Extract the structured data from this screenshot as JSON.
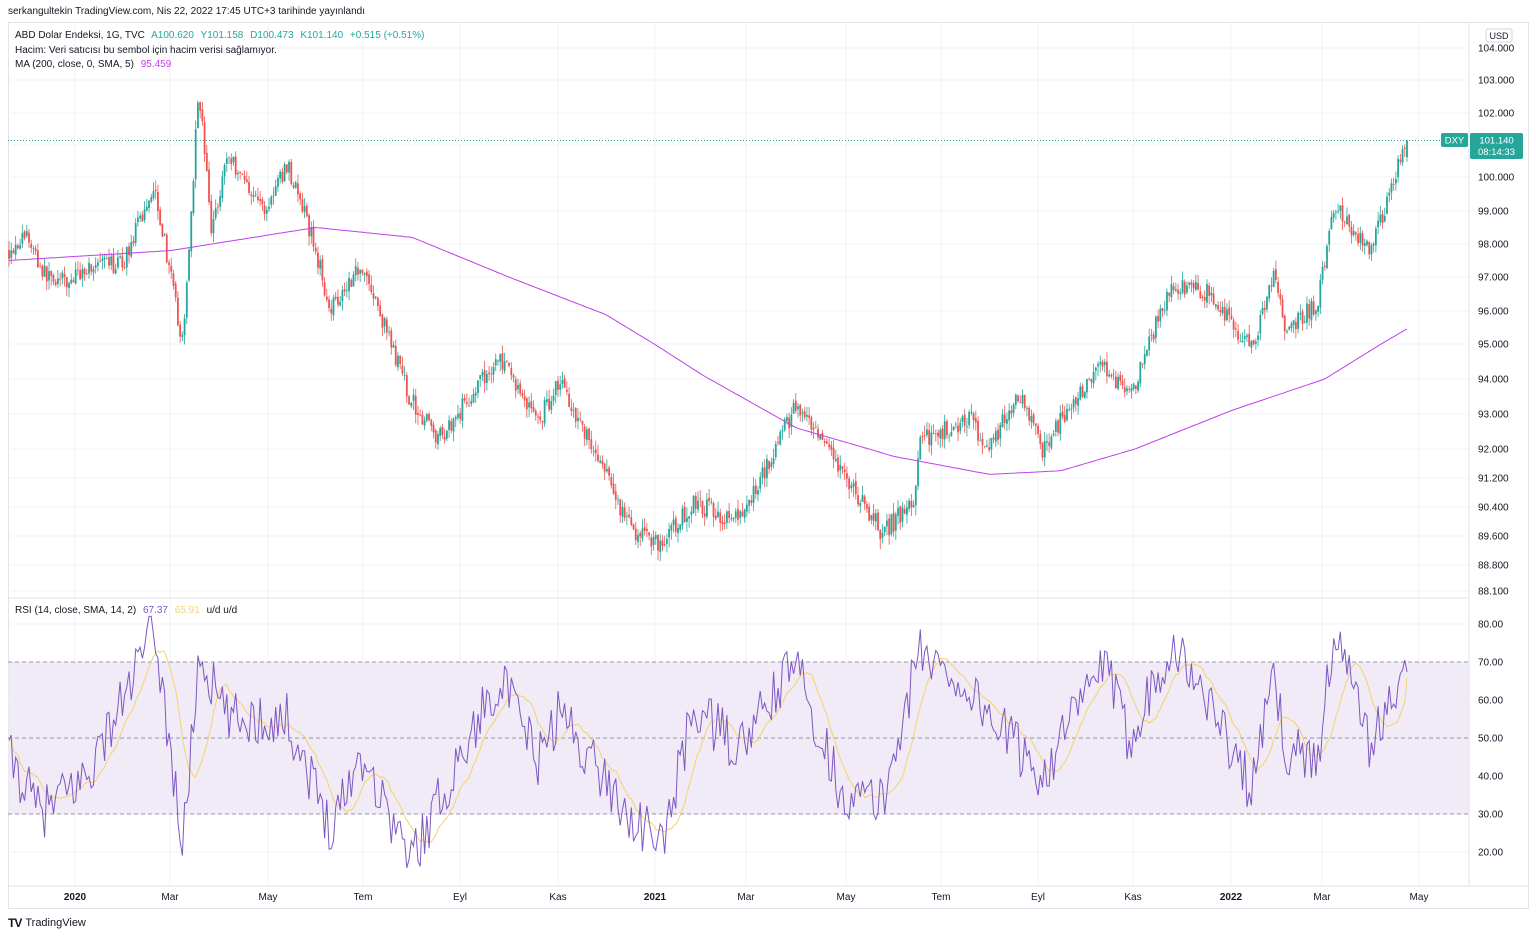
{
  "header": {
    "published": "serkangultekin TradingView.com, Nis 22, 2022 17:45 UTC+3 tarihinde yayınlandı"
  },
  "legend": {
    "symbol": "ABD Dolar Endeksi, 1G, TVC",
    "open": "A100.620",
    "high": "Y101.158",
    "low": "D100.473",
    "close": "K101.140",
    "change": "+0.515 (+0.51%)",
    "volume_note": "Hacim: Veri satıcısı bu sembol için hacim verisi sağlamıyor.",
    "ma_label": "MA (200, close, 0, SMA, 5)",
    "ma_value": "95.459",
    "rsi_label": "RSI (14, close, SMA, 14, 2)",
    "rsi_value": "67.37",
    "rsi_ma_value": "65.91",
    "rsi_extra": "u/d  u/d"
  },
  "price_axis": {
    "currency": "USD",
    "ticks": [
      "104.000",
      "103.000",
      "102.000",
      "101.000",
      "100.000",
      "99.000",
      "98.000",
      "97.000",
      "96.000",
      "95.000",
      "94.000",
      "93.000",
      "92.000",
      "91.200",
      "90.400",
      "89.600",
      "88.800",
      "88.100"
    ],
    "badge_symbol": "DXY",
    "badge_price": "101.140",
    "badge_countdown": "08:14:33"
  },
  "rsi_axis": {
    "ticks": [
      "80.00",
      "70.00",
      "60.00",
      "50.00",
      "40.00",
      "30.00",
      "20.00"
    ]
  },
  "time_axis": {
    "labels": [
      "2020",
      "Mar",
      "May",
      "Tem",
      "Eyl",
      "Kas",
      "2021",
      "Mar",
      "May",
      "Tem",
      "Eyl",
      "Kas",
      "2022",
      "Mar",
      "May"
    ]
  },
  "colors": {
    "up": "#26a69a",
    "down": "#ef5350",
    "ma": "#c040e8",
    "rsi": "#7e57c2",
    "rsi_ma": "#f5d26a",
    "band": "#ede7f6",
    "badge": "#26a69a"
  },
  "footer": {
    "brand": "TradingView"
  },
  "chart_data": {
    "type": "candlestick",
    "symbol": "DXY",
    "timeframe": "1D",
    "anchor_points": [
      {
        "date": "2019-11-20",
        "close": 97.8
      },
      {
        "date": "2019-12-01",
        "close": 98.3
      },
      {
        "date": "2019-12-12",
        "close": 97.1
      },
      {
        "date": "2019-12-27",
        "close": 96.8
      },
      {
        "date": "2020-01-08",
        "close": 97.3
      },
      {
        "date": "2020-01-31",
        "close": 97.4
      },
      {
        "date": "2020-02-20",
        "close": 99.8
      },
      {
        "date": "2020-03-09",
        "close": 94.9
      },
      {
        "date": "2020-03-19",
        "close": 102.8
      },
      {
        "date": "2020-03-27",
        "close": 98.4
      },
      {
        "date": "2020-04-06",
        "close": 100.7
      },
      {
        "date": "2020-04-30",
        "close": 99.0
      },
      {
        "date": "2020-05-14",
        "close": 100.4
      },
      {
        "date": "2020-05-29",
        "close": 98.3
      },
      {
        "date": "2020-06-10",
        "close": 96.1
      },
      {
        "date": "2020-06-30",
        "close": 97.4
      },
      {
        "date": "2020-07-31",
        "close": 93.4
      },
      {
        "date": "2020-08-18",
        "close": 92.3
      },
      {
        "date": "2020-09-25",
        "close": 94.6
      },
      {
        "date": "2020-10-20",
        "close": 92.8
      },
      {
        "date": "2020-11-02",
        "close": 94.0
      },
      {
        "date": "2020-12-17",
        "close": 89.8
      },
      {
        "date": "2021-01-06",
        "close": 89.4
      },
      {
        "date": "2021-01-26",
        "close": 90.5
      },
      {
        "date": "2021-02-24",
        "close": 90.0
      },
      {
        "date": "2021-03-31",
        "close": 93.2
      },
      {
        "date": "2021-04-30",
        "close": 91.3
      },
      {
        "date": "2021-05-25",
        "close": 89.7
      },
      {
        "date": "2021-06-14",
        "close": 90.5
      },
      {
        "date": "2021-06-18",
        "close": 92.2
      },
      {
        "date": "2021-07-20",
        "close": 92.9
      },
      {
        "date": "2021-07-30",
        "close": 92.0
      },
      {
        "date": "2021-08-20",
        "close": 93.5
      },
      {
        "date": "2021-09-03",
        "close": 92.0
      },
      {
        "date": "2021-10-12",
        "close": 94.5
      },
      {
        "date": "2021-10-28",
        "close": 93.4
      },
      {
        "date": "2021-11-24",
        "close": 96.8
      },
      {
        "date": "2021-12-20",
        "close": 96.5
      },
      {
        "date": "2022-01-14",
        "close": 94.8
      },
      {
        "date": "2022-01-28",
        "close": 97.2
      },
      {
        "date": "2022-02-04",
        "close": 95.4
      },
      {
        "date": "2022-02-24",
        "close": 96.2
      },
      {
        "date": "2022-03-07",
        "close": 99.2
      },
      {
        "date": "2022-03-30",
        "close": 97.8
      },
      {
        "date": "2022-04-22",
        "close": 101.14
      }
    ],
    "last_bar": {
      "open": 100.62,
      "high": 101.158,
      "low": 100.473,
      "close": 101.14
    },
    "ma200": [
      {
        "date": "2019-11-20",
        "value": 97.5
      },
      {
        "date": "2020-03-01",
        "value": 97.8
      },
      {
        "date": "2020-06-01",
        "value": 98.5
      },
      {
        "date": "2020-08-01",
        "value": 98.2
      },
      {
        "date": "2020-10-01",
        "value": 97.0
      },
      {
        "date": "2020-12-01",
        "value": 95.9
      },
      {
        "date": "2021-02-01",
        "value": 94.1
      },
      {
        "date": "2021-04-01",
        "value": 92.6
      },
      {
        "date": "2021-06-01",
        "value": 91.8
      },
      {
        "date": "2021-08-01",
        "value": 91.3
      },
      {
        "date": "2021-09-15",
        "value": 91.4
      },
      {
        "date": "2021-11-01",
        "value": 92.0
      },
      {
        "date": "2022-01-01",
        "value": 93.1
      },
      {
        "date": "2022-03-01",
        "value": 94.0
      },
      {
        "date": "2022-04-22",
        "value": 95.459
      }
    ],
    "rsi": [
      {
        "date": "2019-11-20",
        "value": 45
      },
      {
        "date": "2019-12-10",
        "value": 30
      },
      {
        "date": "2020-01-08",
        "value": 40
      },
      {
        "date": "2020-01-31",
        "value": 60
      },
      {
        "date": "2020-02-20",
        "value": 79
      },
      {
        "date": "2020-03-09",
        "value": 21
      },
      {
        "date": "2020-03-19",
        "value": 72
      },
      {
        "date": "2020-04-06",
        "value": 55
      },
      {
        "date": "2020-05-14",
        "value": 55
      },
      {
        "date": "2020-06-10",
        "value": 27
      },
      {
        "date": "2020-06-30",
        "value": 46
      },
      {
        "date": "2020-07-31",
        "value": 18
      },
      {
        "date": "2020-09-25",
        "value": 66
      },
      {
        "date": "2020-10-20",
        "value": 44
      },
      {
        "date": "2020-11-02",
        "value": 57
      },
      {
        "date": "2020-12-17",
        "value": 29
      },
      {
        "date": "2021-01-06",
        "value": 22
      },
      {
        "date": "2021-01-26",
        "value": 58
      },
      {
        "date": "2021-02-24",
        "value": 47
      },
      {
        "date": "2021-03-31",
        "value": 70
      },
      {
        "date": "2021-04-30",
        "value": 35
      },
      {
        "date": "2021-05-25",
        "value": 33
      },
      {
        "date": "2021-06-18",
        "value": 73
      },
      {
        "date": "2021-07-20",
        "value": 62
      },
      {
        "date": "2021-09-03",
        "value": 40
      },
      {
        "date": "2021-10-12",
        "value": 70
      },
      {
        "date": "2021-10-28",
        "value": 50
      },
      {
        "date": "2021-11-24",
        "value": 75
      },
      {
        "date": "2021-12-20",
        "value": 58
      },
      {
        "date": "2022-01-14",
        "value": 36
      },
      {
        "date": "2022-01-28",
        "value": 67
      },
      {
        "date": "2022-02-04",
        "value": 47
      },
      {
        "date": "2022-02-24",
        "value": 44
      },
      {
        "date": "2022-03-07",
        "value": 78
      },
      {
        "date": "2022-03-30",
        "value": 48
      },
      {
        "date": "2022-04-22",
        "value": 67.37
      }
    ],
    "rsi_ma_last": 65.91,
    "rsi_levels": [
      70,
      50,
      30
    ],
    "price_range": [
      88.1,
      104.4
    ],
    "rsi_range": [
      15,
      82
    ]
  }
}
